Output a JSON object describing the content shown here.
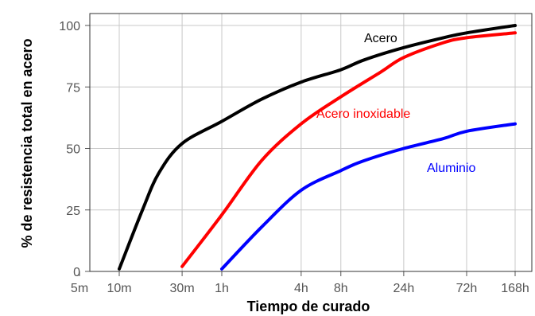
{
  "chart_data": {
    "type": "line",
    "title": "",
    "xlabel": "Tiempo de curado",
    "ylabel": "% de resistencia total en acero",
    "x_scale": "log",
    "x_unit": "hours",
    "xlim": [
      0.0833,
      168
    ],
    "ylim": [
      0,
      100
    ],
    "x_ticks": [
      {
        "label": "5m",
        "value": 0.0833
      },
      {
        "label": "10m",
        "value": 0.1667
      },
      {
        "label": "30m",
        "value": 0.5
      },
      {
        "label": "1h",
        "value": 1
      },
      {
        "label": "4h",
        "value": 4
      },
      {
        "label": "8h",
        "value": 8
      },
      {
        "label": "24h",
        "value": 24
      },
      {
        "label": "72h",
        "value": 72
      },
      {
        "label": "168h",
        "value": 168
      }
    ],
    "y_ticks": [
      {
        "label": "0",
        "value": 0
      },
      {
        "label": "25",
        "value": 25
      },
      {
        "label": "50",
        "value": 50
      },
      {
        "label": "75",
        "value": 75
      },
      {
        "label": "100",
        "value": 100
      }
    ],
    "grid": true,
    "series": [
      {
        "name": "Acero",
        "color": "#000000",
        "points": [
          [
            0.1667,
            1
          ],
          [
            0.25,
            25
          ],
          [
            0.333,
            40
          ],
          [
            0.5,
            52
          ],
          [
            1,
            61
          ],
          [
            2,
            70
          ],
          [
            4,
            77
          ],
          [
            8,
            82
          ],
          [
            12,
            86
          ],
          [
            24,
            91
          ],
          [
            48,
            95
          ],
          [
            72,
            97
          ],
          [
            168,
            100
          ]
        ]
      },
      {
        "name": "Acero inoxidable",
        "color": "#ff0000",
        "points": [
          [
            0.5,
            2
          ],
          [
            1,
            23
          ],
          [
            2,
            45
          ],
          [
            4,
            60
          ],
          [
            8,
            71
          ],
          [
            16,
            81
          ],
          [
            24,
            87
          ],
          [
            48,
            93
          ],
          [
            72,
            95
          ],
          [
            168,
            97
          ]
        ]
      },
      {
        "name": "Aluminio",
        "color": "#0000ff",
        "points": [
          [
            1,
            1
          ],
          [
            2,
            18
          ],
          [
            4,
            33
          ],
          [
            8,
            41
          ],
          [
            12,
            45
          ],
          [
            24,
            50
          ],
          [
            48,
            54
          ],
          [
            72,
            57
          ],
          [
            168,
            60
          ]
        ]
      }
    ]
  }
}
